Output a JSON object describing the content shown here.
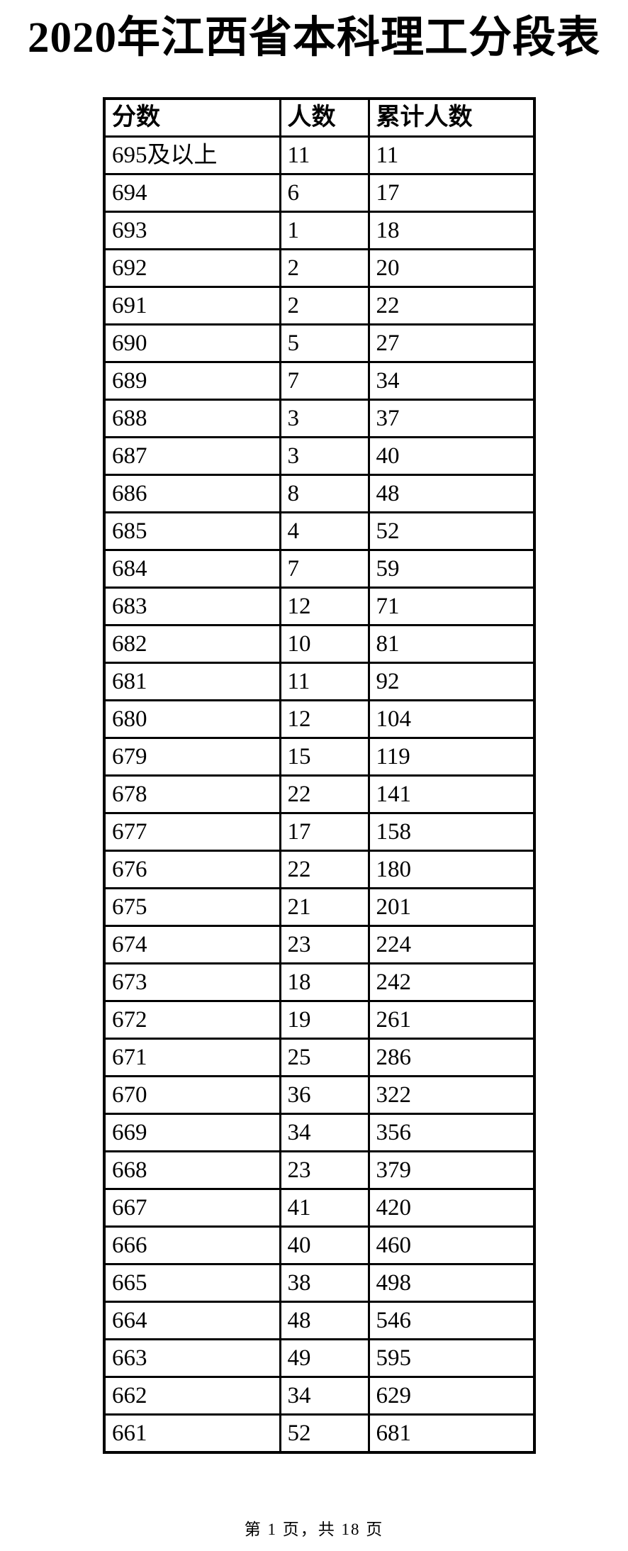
{
  "page": {
    "title": "2020年江西省本科理工分段表",
    "footer": "第 1 页，共 18 页",
    "colors": {
      "text": "#000000",
      "background": "#ffffff",
      "border": "#000000"
    }
  },
  "table": {
    "headers": [
      "分数",
      "人数",
      "累计人数"
    ],
    "rows": [
      {
        "score": "695及以上",
        "count": 11,
        "cumulative": 11
      },
      {
        "score": "694",
        "count": 6,
        "cumulative": 17
      },
      {
        "score": "693",
        "count": 1,
        "cumulative": 18
      },
      {
        "score": "692",
        "count": 2,
        "cumulative": 20
      },
      {
        "score": "691",
        "count": 2,
        "cumulative": 22
      },
      {
        "score": "690",
        "count": 5,
        "cumulative": 27
      },
      {
        "score": "689",
        "count": 7,
        "cumulative": 34
      },
      {
        "score": "688",
        "count": 3,
        "cumulative": 37
      },
      {
        "score": "687",
        "count": 3,
        "cumulative": 40
      },
      {
        "score": "686",
        "count": 8,
        "cumulative": 48
      },
      {
        "score": "685",
        "count": 4,
        "cumulative": 52
      },
      {
        "score": "684",
        "count": 7,
        "cumulative": 59
      },
      {
        "score": "683",
        "count": 12,
        "cumulative": 71
      },
      {
        "score": "682",
        "count": 10,
        "cumulative": 81
      },
      {
        "score": "681",
        "count": 11,
        "cumulative": 92
      },
      {
        "score": "680",
        "count": 12,
        "cumulative": 104
      },
      {
        "score": "679",
        "count": 15,
        "cumulative": 119
      },
      {
        "score": "678",
        "count": 22,
        "cumulative": 141
      },
      {
        "score": "677",
        "count": 17,
        "cumulative": 158
      },
      {
        "score": "676",
        "count": 22,
        "cumulative": 180
      },
      {
        "score": "675",
        "count": 21,
        "cumulative": 201
      },
      {
        "score": "674",
        "count": 23,
        "cumulative": 224
      },
      {
        "score": "673",
        "count": 18,
        "cumulative": 242
      },
      {
        "score": "672",
        "count": 19,
        "cumulative": 261
      },
      {
        "score": "671",
        "count": 25,
        "cumulative": 286
      },
      {
        "score": "670",
        "count": 36,
        "cumulative": 322
      },
      {
        "score": "669",
        "count": 34,
        "cumulative": 356
      },
      {
        "score": "668",
        "count": 23,
        "cumulative": 379
      },
      {
        "score": "667",
        "count": 41,
        "cumulative": 420
      },
      {
        "score": "666",
        "count": 40,
        "cumulative": 460
      },
      {
        "score": "665",
        "count": 38,
        "cumulative": 498
      },
      {
        "score": "664",
        "count": 48,
        "cumulative": 546
      },
      {
        "score": "663",
        "count": 49,
        "cumulative": 595
      },
      {
        "score": "662",
        "count": 34,
        "cumulative": 629
      },
      {
        "score": "661",
        "count": 52,
        "cumulative": 681
      }
    ]
  }
}
